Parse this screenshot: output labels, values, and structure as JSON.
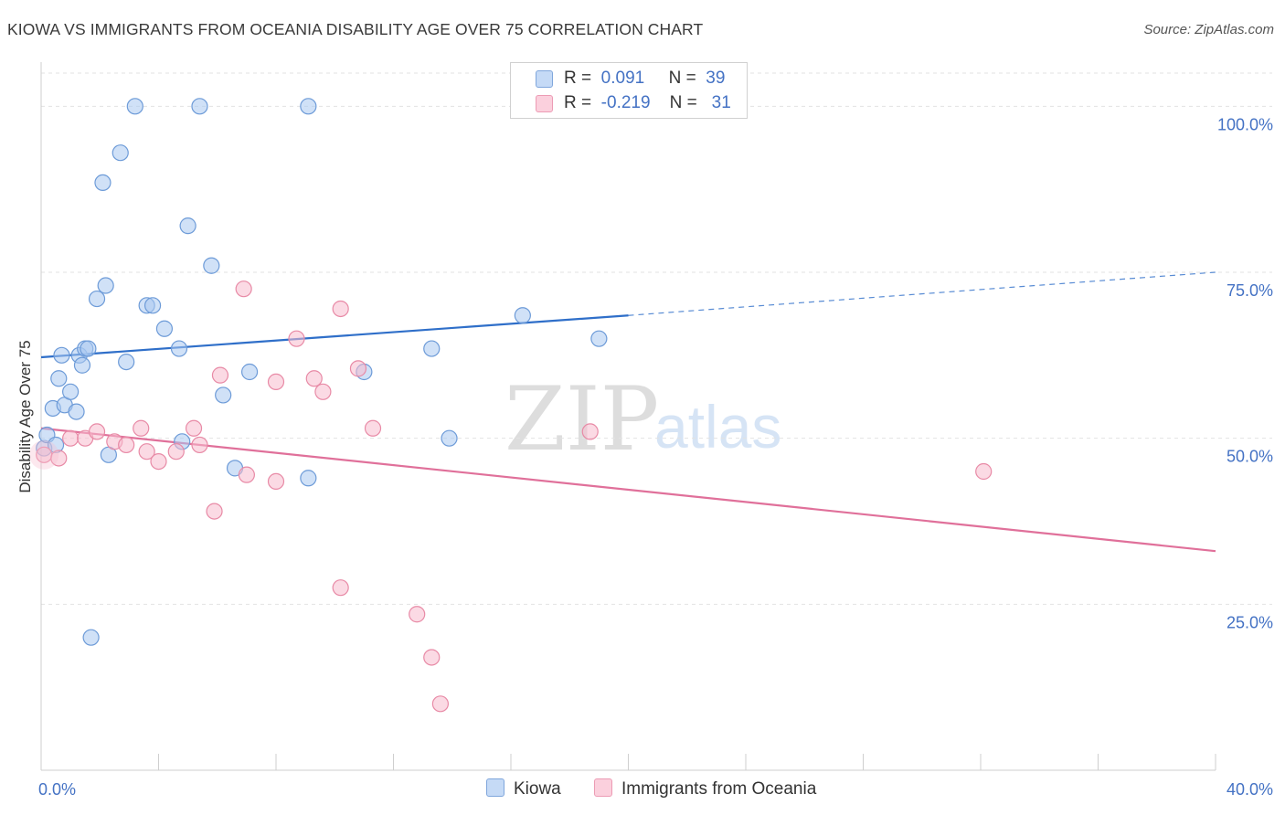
{
  "header": {
    "title": "KIOWA VS IMMIGRANTS FROM OCEANIA DISABILITY AGE OVER 75 CORRELATION CHART",
    "source": "Source: ZipAtlas.com"
  },
  "legend": {
    "kiowa": {
      "r_label": "R =",
      "r_value": "0.091",
      "n_label": "N =",
      "n_value": "39"
    },
    "oceania": {
      "r_label": "R =",
      "r_value": "-0.219",
      "n_label": "N =",
      "n_value": "31"
    }
  },
  "watermark": {
    "zip": "ZIP",
    "atlas": "atlas"
  },
  "colors": {
    "kiowa_fill": "#a9c8f0",
    "kiowa_stroke": "#6d9bd8",
    "kiowa_line": "#2f6fc9",
    "oceania_fill": "#f7bccd",
    "oceania_stroke": "#e88aa6",
    "oceania_line": "#e0709a",
    "axis_text": "#4472c4"
  },
  "chart_data": {
    "type": "scatter",
    "title": "KIOWA VS IMMIGRANTS FROM OCEANIA DISABILITY AGE OVER 75 CORRELATION CHART",
    "xlabel": "",
    "ylabel": "Disability Age Over 75",
    "xlim": [
      0,
      40
    ],
    "ylim": [
      0,
      105
    ],
    "x_tick_labels": [
      "0.0%",
      "40.0%"
    ],
    "y_ticks": [
      25,
      50,
      75,
      100
    ],
    "y_tick_labels": [
      "25.0%",
      "50.0%",
      "75.0%",
      "100.0%"
    ],
    "grid": true,
    "legend_position": "top-center",
    "series": [
      {
        "name": "Kiowa",
        "points": [
          [
            0.1,
            48.5
          ],
          [
            0.2,
            50.5
          ],
          [
            0.4,
            54.5
          ],
          [
            0.5,
            49
          ],
          [
            0.6,
            59
          ],
          [
            0.7,
            62.5
          ],
          [
            0.8,
            55
          ],
          [
            1.0,
            57
          ],
          [
            1.2,
            54
          ],
          [
            1.3,
            62.5
          ],
          [
            1.4,
            61
          ],
          [
            1.5,
            63.5
          ],
          [
            1.6,
            63.5
          ],
          [
            1.7,
            20
          ],
          [
            1.9,
            71
          ],
          [
            2.1,
            88.5
          ],
          [
            2.2,
            73
          ],
          [
            2.3,
            47.5
          ],
          [
            2.7,
            93
          ],
          [
            2.9,
            61.5
          ],
          [
            3.2,
            100
          ],
          [
            3.6,
            70
          ],
          [
            3.8,
            70
          ],
          [
            4.2,
            66.5
          ],
          [
            4.7,
            63.5
          ],
          [
            4.8,
            49.5
          ],
          [
            5.0,
            82
          ],
          [
            5.4,
            100
          ],
          [
            5.8,
            76
          ],
          [
            6.2,
            56.5
          ],
          [
            6.6,
            45.5
          ],
          [
            7.1,
            60
          ],
          [
            9.1,
            100
          ],
          [
            9.1,
            44
          ],
          [
            11,
            60
          ],
          [
            13.3,
            63.5
          ],
          [
            13.9,
            50
          ],
          [
            16.4,
            68.5
          ],
          [
            19,
            65
          ]
        ]
      },
      {
        "name": "Immigrants from Oceania",
        "points": [
          [
            0.1,
            47.5
          ],
          [
            0.6,
            47
          ],
          [
            1.0,
            50
          ],
          [
            1.5,
            50
          ],
          [
            1.9,
            51
          ],
          [
            2.5,
            49.5
          ],
          [
            2.9,
            49
          ],
          [
            3.4,
            51.5
          ],
          [
            3.6,
            48
          ],
          [
            4.0,
            46.5
          ],
          [
            4.6,
            48
          ],
          [
            5.2,
            51.5
          ],
          [
            5.4,
            49
          ],
          [
            5.9,
            39
          ],
          [
            6.1,
            59.5
          ],
          [
            6.9,
            72.5
          ],
          [
            7.0,
            44.5
          ],
          [
            8.0,
            43.5
          ],
          [
            8.0,
            58.5
          ],
          [
            8.7,
            65
          ],
          [
            9.3,
            59
          ],
          [
            9.6,
            57
          ],
          [
            10.2,
            69.5
          ],
          [
            10.2,
            27.5
          ],
          [
            10.8,
            60.5
          ],
          [
            11.3,
            51.5
          ],
          [
            12.8,
            23.5
          ],
          [
            13.3,
            17
          ],
          [
            13.6,
            10
          ],
          [
            18.7,
            51
          ],
          [
            32.1,
            45
          ]
        ]
      }
    ],
    "trend_lines": [
      {
        "series": "Kiowa",
        "from": [
          0,
          62.2
        ],
        "solid_to": [
          20,
          68.5
        ],
        "dashed_to": [
          40,
          75
        ]
      },
      {
        "series": "Immigrants from Oceania",
        "from": [
          0,
          51.5
        ],
        "to": [
          40,
          33
        ]
      }
    ]
  }
}
